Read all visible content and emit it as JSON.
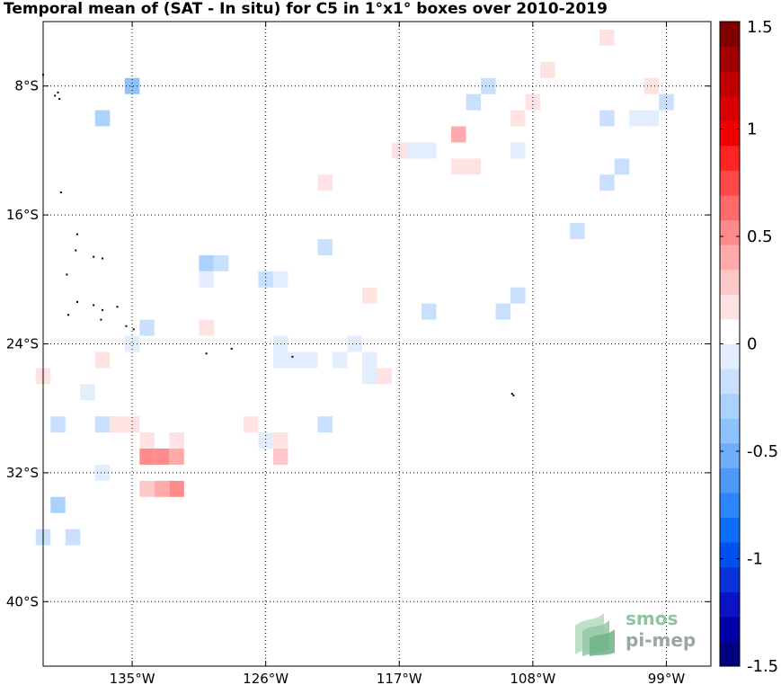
{
  "title": "Temporal mean of (SAT - In situ) for C5 in 1°x1° boxes over 2010-2019",
  "logo": {
    "line1": "smos",
    "line2": "pi-mep"
  },
  "chart_data": {
    "type": "heatmap",
    "title": "Temporal mean of (SAT - In situ) for C5 in 1°x1° boxes over 2010-2019",
    "x_range": [
      -141,
      -96
    ],
    "y_range": [
      -44,
      -4
    ],
    "x_ticks": [
      {
        "value": -135,
        "label": "135°W"
      },
      {
        "value": -126,
        "label": "126°W"
      },
      {
        "value": -117,
        "label": "117°W"
      },
      {
        "value": -108,
        "label": "108°W"
      },
      {
        "value": -99,
        "label": "99°W"
      }
    ],
    "y_ticks": [
      {
        "value": -8,
        "label": "8°S"
      },
      {
        "value": -16,
        "label": "16°S"
      },
      {
        "value": -24,
        "label": "24°S"
      },
      {
        "value": -32,
        "label": "32°S"
      },
      {
        "value": -40,
        "label": "40°S"
      }
    ],
    "grid": true,
    "colorbar": {
      "min": -1.5,
      "max": 1.5,
      "ticks": [
        {
          "value": 1.5,
          "label": "1.5"
        },
        {
          "value": 1,
          "label": "1"
        },
        {
          "value": 0.5,
          "label": "0.5"
        },
        {
          "value": 0,
          "label": "0"
        },
        {
          "value": -0.5,
          "label": "-0.5"
        },
        {
          "value": -1,
          "label": "-1"
        },
        {
          "value": -1.5,
          "label": "-1.5"
        }
      ],
      "colors": [
        "#000080",
        "#0000a8",
        "#0a14c4",
        "#0a32dc",
        "#0050f0",
        "#0a6ef8",
        "#2a86fa",
        "#4e9afa",
        "#6eaefa",
        "#8ec2fc",
        "#abd2fc",
        "#c8e0fe",
        "#e2eefe",
        "#ffffff",
        "#ffe2e2",
        "#ffc8c8",
        "#ffaaaa",
        "#ff8c8c",
        "#ff6a6a",
        "#ff4848",
        "#ff2424",
        "#f00000",
        "#d80000",
        "#c00000",
        "#a00000",
        "#800000"
      ]
    },
    "cells": [
      {
        "lon": -103,
        "lat": -5,
        "value": 0.15
      },
      {
        "lon": -107,
        "lat": -7,
        "value": 0.15
      },
      {
        "lon": -100,
        "lat": -8,
        "value": 0.15
      },
      {
        "lon": -135,
        "lat": -8,
        "value": -0.38
      },
      {
        "lon": -111,
        "lat": -8,
        "value": -0.15
      },
      {
        "lon": -112,
        "lat": -9,
        "value": -0.15
      },
      {
        "lon": -108,
        "lat": -9,
        "value": 0.15
      },
      {
        "lon": -99,
        "lat": -9,
        "value": -0.15
      },
      {
        "lon": -137,
        "lat": -10,
        "value": -0.27
      },
      {
        "lon": -109,
        "lat": -10,
        "value": 0.2
      },
      {
        "lon": -103,
        "lat": -10,
        "value": -0.15
      },
      {
        "lon": -101,
        "lat": -10,
        "value": -0.08
      },
      {
        "lon": -100,
        "lat": -10,
        "value": -0.08
      },
      {
        "lon": -113,
        "lat": -11,
        "value": 0.35
      },
      {
        "lon": -117,
        "lat": -12,
        "value": 0.15
      },
      {
        "lon": -116,
        "lat": -12,
        "value": -0.08
      },
      {
        "lon": -115,
        "lat": -12,
        "value": -0.08
      },
      {
        "lon": -109,
        "lat": -12,
        "value": -0.08
      },
      {
        "lon": -113,
        "lat": -13,
        "value": 0.15
      },
      {
        "lon": -112,
        "lat": -13,
        "value": 0.15
      },
      {
        "lon": -102,
        "lat": -13,
        "value": -0.15
      },
      {
        "lon": -103,
        "lat": -14,
        "value": -0.15
      },
      {
        "lon": -122,
        "lat": -14,
        "value": 0.15
      },
      {
        "lon": -123,
        "lat": -16,
        "value": 0.08
      },
      {
        "lon": -124,
        "lat": -16,
        "value": 0.08
      },
      {
        "lon": -123,
        "lat": -17,
        "value": 0.08
      },
      {
        "lon": -105,
        "lat": -17,
        "value": -0.15
      },
      {
        "lon": -128,
        "lat": -18,
        "value": 0.08
      },
      {
        "lon": -127,
        "lat": -18,
        "value": 0.08
      },
      {
        "lon": -126,
        "lat": -18,
        "value": 0.08
      },
      {
        "lon": -122,
        "lat": -18,
        "value": -0.15
      },
      {
        "lon": -130,
        "lat": -19,
        "value": -0.27
      },
      {
        "lon": -129,
        "lat": -19,
        "value": -0.15
      },
      {
        "lon": -130,
        "lat": -20,
        "value": -0.08
      },
      {
        "lon": -126,
        "lat": -20,
        "value": -0.15
      },
      {
        "lon": -125,
        "lat": -20,
        "value": -0.08
      },
      {
        "lon": -119,
        "lat": -21,
        "value": 0.15
      },
      {
        "lon": -109,
        "lat": -21,
        "value": -0.15
      },
      {
        "lon": -115,
        "lat": -22,
        "value": -0.15
      },
      {
        "lon": -110,
        "lat": -22,
        "value": -0.15
      },
      {
        "lon": -130,
        "lat": -23,
        "value": 0.15
      },
      {
        "lon": -134,
        "lat": -23,
        "value": -0.15
      },
      {
        "lon": -135,
        "lat": -24,
        "value": -0.08
      },
      {
        "lon": -125,
        "lat": -24,
        "value": -0.08
      },
      {
        "lon": -120,
        "lat": -24,
        "value": -0.08
      },
      {
        "lon": -137,
        "lat": -25,
        "value": 0.2
      },
      {
        "lon": -125,
        "lat": -25,
        "value": -0.08
      },
      {
        "lon": -124,
        "lat": -25,
        "value": -0.08
      },
      {
        "lon": -123,
        "lat": -25,
        "value": -0.08
      },
      {
        "lon": -121,
        "lat": -25,
        "value": -0.08
      },
      {
        "lon": -119,
        "lat": -25,
        "value": -0.08
      },
      {
        "lon": -141,
        "lat": -26,
        "value": 0.15
      },
      {
        "lon": -119,
        "lat": -26,
        "value": -0.08
      },
      {
        "lon": -118,
        "lat": -26,
        "value": 0.15
      },
      {
        "lon": -138,
        "lat": -27,
        "value": -0.08
      },
      {
        "lon": -134,
        "lat": -28,
        "value": 0.08
      },
      {
        "lon": -133,
        "lat": -28,
        "value": 0.08
      },
      {
        "lon": -140,
        "lat": -29,
        "value": -0.15
      },
      {
        "lon": -137,
        "lat": -29,
        "value": -0.15
      },
      {
        "lon": -136,
        "lat": -29,
        "value": 0.15
      },
      {
        "lon": -135,
        "lat": -29,
        "value": 0.15
      },
      {
        "lon": -127,
        "lat": -29,
        "value": 0.15
      },
      {
        "lon": -122,
        "lat": -29,
        "value": -0.15
      },
      {
        "lon": -134,
        "lat": -30,
        "value": 0.15
      },
      {
        "lon": -132,
        "lat": -30,
        "value": 0.2
      },
      {
        "lon": -126,
        "lat": -30,
        "value": -0.08
      },
      {
        "lon": -125,
        "lat": -30,
        "value": 0.15
      },
      {
        "lon": -134,
        "lat": -31,
        "value": 0.5
      },
      {
        "lon": -133,
        "lat": -31,
        "value": 0.55
      },
      {
        "lon": -132,
        "lat": -31,
        "value": 0.4
      },
      {
        "lon": -125,
        "lat": -31,
        "value": 0.3
      },
      {
        "lon": -137,
        "lat": -32,
        "value": -0.08
      },
      {
        "lon": -134,
        "lat": -33,
        "value": 0.3
      },
      {
        "lon": -133,
        "lat": -33,
        "value": 0.4
      },
      {
        "lon": -132,
        "lat": -33,
        "value": 0.5
      },
      {
        "lon": -140,
        "lat": -34,
        "value": -0.3
      },
      {
        "lon": -141,
        "lat": -36,
        "value": -0.15
      },
      {
        "lon": -139,
        "lat": -36,
        "value": -0.15
      }
    ]
  }
}
